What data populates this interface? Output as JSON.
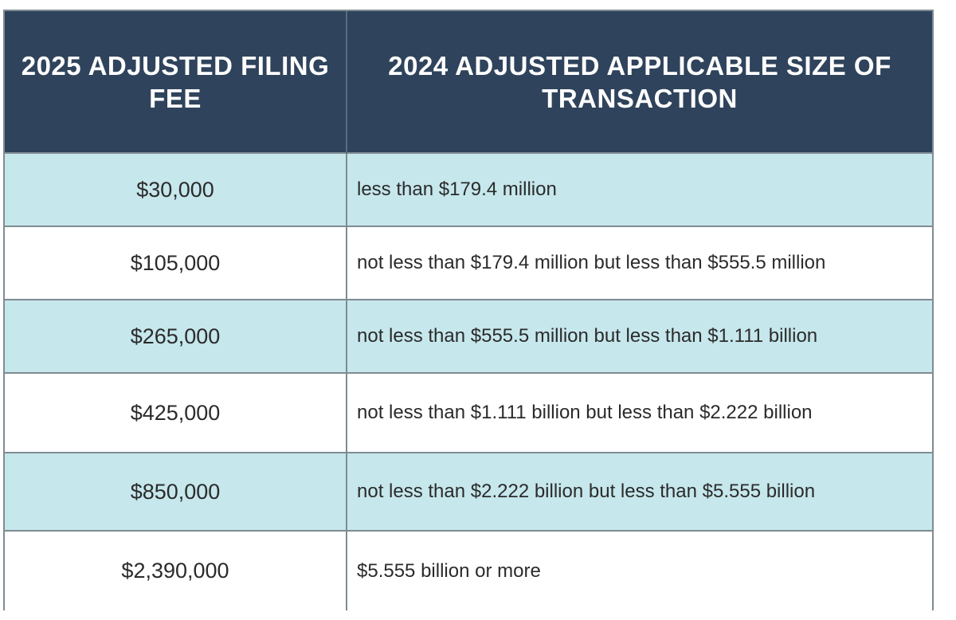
{
  "table": {
    "headers": {
      "fee": "2025 ADJUSTED FILING FEE",
      "size": "2024 ADJUSTED APPLICABLE SIZE OF TRANSACTION"
    },
    "rows": [
      {
        "fee": "$30,000",
        "size": "less than $179.4 million"
      },
      {
        "fee": "$105,000",
        "size": "not less than $179.4 million but less than $555.5 million"
      },
      {
        "fee": "$265,000",
        "size": "not less than $555.5 million but less than $1.111 billion"
      },
      {
        "fee": "$425,000",
        "size": "not less than $1.111 billion but less than $2.222 billion"
      },
      {
        "fee": "$850,000",
        "size": "not less than $2.222 billion but less than $5.555 billion"
      },
      {
        "fee": "$2,390,000",
        "size": "$5.555 billion or more"
      }
    ]
  },
  "colors": {
    "header_bg": "#2f435c",
    "shaded_row": "#c6e7ec",
    "border": "#7f8c92"
  }
}
